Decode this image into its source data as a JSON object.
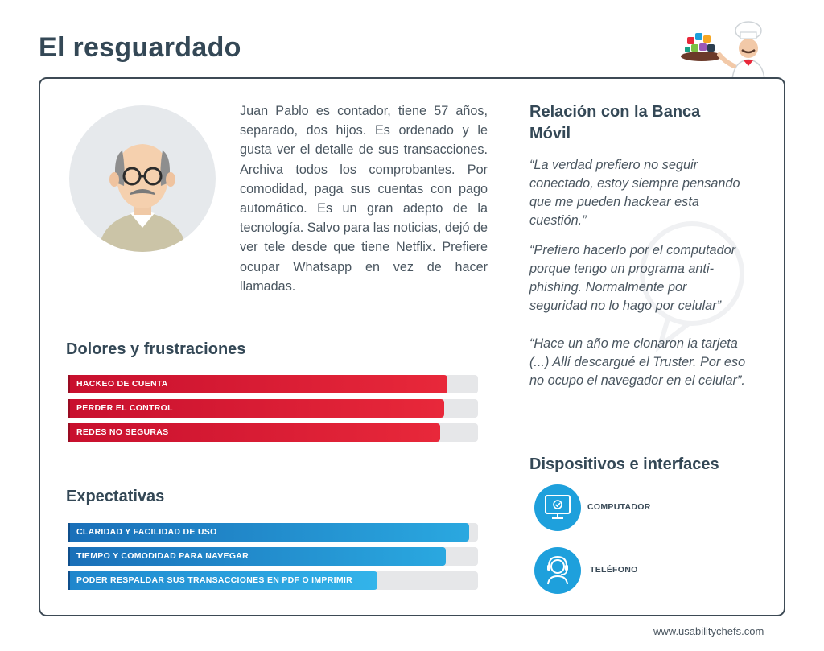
{
  "header": {
    "title": "El resguardado"
  },
  "logo": {
    "icon": "chef-with-tray-icon"
  },
  "profile": {
    "avatar_icon": "elderly-man-avatar-icon",
    "bio": "Juan Pablo es contador, tiene 57 años, separado, dos hijos. Es ordenado y le gusta ver el detalle de sus transacciones. Archiva todos los comprobantes. Por comodidad, paga sus cuentas con pago automático. Es un gran adepto de la tecnología. Salvo para las noticias, dejó de ver tele desde que tiene Netflix. Prefiere ocupar Whatsapp en vez de hacer llamadas."
  },
  "pains": {
    "title": "Dolores y frustraciones",
    "items": [
      {
        "label": "HACKEO DE CUENTA",
        "level": 0.925
      },
      {
        "label": "PERDER EL CONTROL",
        "level": 0.918
      },
      {
        "label": "REDES NO SEGURAS",
        "level": 0.908
      }
    ]
  },
  "expectations": {
    "title": "Expectativas",
    "items": [
      {
        "label": "CLARIDAD Y FACILIDAD DE USO",
        "level": 0.978
      },
      {
        "label": "TIEMPO Y COMODIDAD PARA NAVEGAR",
        "level": 0.922
      },
      {
        "label": "PODER RESPALDAR SUS TRANSACCIONES EN PDF O IMPRIMIR",
        "level": 0.755
      }
    ]
  },
  "relation": {
    "title": "Relación con la Banca Móvil",
    "quotes": [
      "“La verdad prefiero no seguir conectado, estoy siempre pensando que me pueden hackear esta cuestión.”",
      "“Prefiero hacerlo por el computador porque tengo un programa anti-phishing. Normalmente por seguridad no lo hago por celular”",
      "“Hace un año me clonaron la tarjeta (...) Allí descargué el Truster. Por eso no ocupo el navegador en el celular”."
    ]
  },
  "devices": {
    "title": "Dispositivos e interfaces",
    "items": [
      {
        "label": "COMPUTADOR",
        "icon": "monitor-icon"
      },
      {
        "label": "TELÉFONO",
        "icon": "headset-user-icon"
      }
    ]
  },
  "colors": {
    "red": "#e8283a",
    "blue": "#1ea0dc",
    "dark": "#344856"
  },
  "footer": {
    "url": "www.usabilitychefs.com"
  }
}
